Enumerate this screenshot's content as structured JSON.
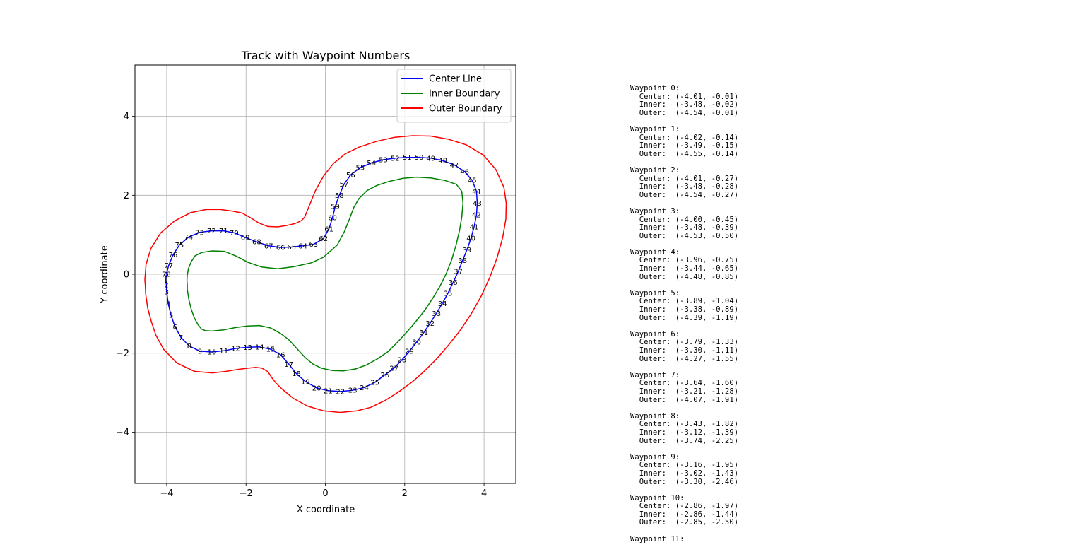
{
  "chart_data": {
    "type": "line",
    "title": "Track with Waypoint Numbers",
    "xlabel": "X coordinate",
    "ylabel": "Y coordinate",
    "xlim": [
      -4.8,
      4.8
    ],
    "ylim": [
      -5.3,
      5.3
    ],
    "xticks": [
      -4,
      -2,
      0,
      2,
      4
    ],
    "yticks": [
      -4,
      -2,
      0,
      2,
      4
    ],
    "grid": true,
    "legend_position": "top-right",
    "series": [
      {
        "name": "Center Line",
        "color": "#0000ff",
        "points": [
          [
            -4.01,
            -0.01
          ],
          [
            -4.02,
            -0.14
          ],
          [
            -4.01,
            -0.27
          ],
          [
            -4.0,
            -0.45
          ],
          [
            -3.96,
            -0.75
          ],
          [
            -3.89,
            -1.04
          ],
          [
            -3.79,
            -1.33
          ],
          [
            -3.64,
            -1.6
          ],
          [
            -3.43,
            -1.82
          ],
          [
            -3.16,
            -1.95
          ],
          [
            -2.86,
            -1.97
          ],
          [
            -2.56,
            -1.94
          ],
          [
            -2.26,
            -1.88
          ],
          [
            -1.96,
            -1.85
          ],
          [
            -1.66,
            -1.84
          ],
          [
            -1.38,
            -1.9
          ],
          [
            -1.13,
            -2.04
          ],
          [
            -0.92,
            -2.28
          ],
          [
            -0.73,
            -2.52
          ],
          [
            -0.5,
            -2.72
          ],
          [
            -0.22,
            -2.88
          ],
          [
            0.07,
            -2.95
          ],
          [
            0.38,
            -2.97
          ],
          [
            0.69,
            -2.94
          ],
          [
            0.98,
            -2.87
          ],
          [
            1.25,
            -2.74
          ],
          [
            1.5,
            -2.55
          ],
          [
            1.73,
            -2.38
          ],
          [
            1.93,
            -2.17
          ],
          [
            2.12,
            -1.95
          ],
          [
            2.3,
            -1.72
          ],
          [
            2.48,
            -1.48
          ],
          [
            2.64,
            -1.24
          ],
          [
            2.8,
            -0.99
          ],
          [
            2.95,
            -0.74
          ],
          [
            3.09,
            -0.48
          ],
          [
            3.22,
            -0.21
          ],
          [
            3.35,
            0.07
          ],
          [
            3.46,
            0.35
          ],
          [
            3.57,
            0.62
          ],
          [
            3.67,
            0.91
          ],
          [
            3.75,
            1.2
          ],
          [
            3.81,
            1.5
          ],
          [
            3.83,
            1.8
          ],
          [
            3.81,
            2.1
          ],
          [
            3.7,
            2.38
          ],
          [
            3.51,
            2.6
          ],
          [
            3.25,
            2.77
          ],
          [
            2.96,
            2.88
          ],
          [
            2.66,
            2.94
          ],
          [
            2.36,
            2.96
          ],
          [
            2.06,
            2.96
          ],
          [
            1.76,
            2.94
          ],
          [
            1.46,
            2.9
          ],
          [
            1.16,
            2.82
          ],
          [
            0.88,
            2.7
          ],
          [
            0.64,
            2.52
          ],
          [
            0.47,
            2.28
          ],
          [
            0.35,
            2.0
          ],
          [
            0.25,
            1.72
          ],
          [
            0.18,
            1.43
          ],
          [
            0.09,
            1.15
          ],
          [
            -0.05,
            0.9
          ],
          [
            -0.3,
            0.76
          ],
          [
            -0.57,
            0.72
          ],
          [
            -0.85,
            0.69
          ],
          [
            -1.13,
            0.68
          ],
          [
            -1.43,
            0.72
          ],
          [
            -1.73,
            0.82
          ],
          [
            -2.02,
            0.93
          ],
          [
            -2.3,
            1.05
          ],
          [
            -2.57,
            1.1
          ],
          [
            -2.87,
            1.1
          ],
          [
            -3.17,
            1.06
          ],
          [
            -3.45,
            0.94
          ],
          [
            -3.68,
            0.74
          ],
          [
            -3.84,
            0.49
          ],
          [
            -3.95,
            0.22
          ],
          [
            -4.01,
            0.0
          ]
        ]
      },
      {
        "name": "Inner Boundary",
        "color": "#008000",
        "points": [
          [
            -3.48,
            -0.02
          ],
          [
            -3.49,
            -0.15
          ],
          [
            -3.48,
            -0.28
          ],
          [
            -3.48,
            -0.39
          ],
          [
            -3.44,
            -0.65
          ],
          [
            -3.38,
            -0.89
          ],
          [
            -3.3,
            -1.11
          ],
          [
            -3.21,
            -1.28
          ],
          [
            -3.12,
            -1.39
          ],
          [
            -3.02,
            -1.43
          ],
          [
            -2.86,
            -1.44
          ],
          [
            -2.56,
            -1.41
          ],
          [
            -2.26,
            -1.35
          ],
          [
            -1.96,
            -1.31
          ],
          [
            -1.66,
            -1.3
          ],
          [
            -1.38,
            -1.36
          ],
          [
            -1.13,
            -1.5
          ],
          [
            -0.92,
            -1.66
          ],
          [
            -0.73,
            -1.87
          ],
          [
            -0.52,
            -2.1
          ],
          [
            -0.32,
            -2.27
          ],
          [
            -0.1,
            -2.38
          ],
          [
            0.18,
            -2.44
          ],
          [
            0.45,
            -2.45
          ],
          [
            0.76,
            -2.4
          ],
          [
            1.03,
            -2.3
          ],
          [
            1.32,
            -2.14
          ],
          [
            1.58,
            -1.96
          ],
          [
            1.82,
            -1.72
          ],
          [
            2.05,
            -1.47
          ],
          [
            2.28,
            -1.2
          ],
          [
            2.5,
            -0.92
          ],
          [
            2.7,
            -0.62
          ],
          [
            2.88,
            -0.32
          ],
          [
            3.04,
            0.0
          ],
          [
            3.18,
            0.35
          ],
          [
            3.29,
            0.72
          ],
          [
            3.38,
            1.1
          ],
          [
            3.44,
            1.45
          ],
          [
            3.47,
            1.8
          ],
          [
            3.44,
            2.1
          ],
          [
            3.3,
            2.28
          ],
          [
            3.0,
            2.38
          ],
          [
            2.65,
            2.44
          ],
          [
            2.3,
            2.46
          ],
          [
            1.95,
            2.43
          ],
          [
            1.6,
            2.35
          ],
          [
            1.3,
            2.25
          ],
          [
            1.05,
            2.12
          ],
          [
            0.85,
            1.92
          ],
          [
            0.72,
            1.7
          ],
          [
            0.6,
            1.38
          ],
          [
            0.48,
            1.08
          ],
          [
            0.3,
            0.74
          ],
          [
            -0.05,
            0.43
          ],
          [
            -0.35,
            0.29
          ],
          [
            -0.8,
            0.19
          ],
          [
            -1.2,
            0.14
          ],
          [
            -1.6,
            0.18
          ],
          [
            -1.95,
            0.3
          ],
          [
            -2.25,
            0.46
          ],
          [
            -2.55,
            0.58
          ],
          [
            -2.85,
            0.59
          ],
          [
            -3.12,
            0.55
          ],
          [
            -3.28,
            0.47
          ],
          [
            -3.38,
            0.32
          ],
          [
            -3.45,
            0.15
          ],
          [
            -3.48,
            -0.02
          ]
        ]
      },
      {
        "name": "Outer Boundary",
        "color": "#ff0000",
        "points": [
          [
            -4.54,
            -0.01
          ],
          [
            -4.55,
            -0.14
          ],
          [
            -4.54,
            -0.27
          ],
          [
            -4.53,
            -0.5
          ],
          [
            -4.48,
            -0.85
          ],
          [
            -4.39,
            -1.19
          ],
          [
            -4.27,
            -1.55
          ],
          [
            -4.07,
            -1.91
          ],
          [
            -3.74,
            -2.25
          ],
          [
            -3.3,
            -2.46
          ],
          [
            -2.85,
            -2.5
          ],
          [
            -2.5,
            -2.46
          ],
          [
            -2.2,
            -2.41
          ],
          [
            -1.95,
            -2.38
          ],
          [
            -1.75,
            -2.36
          ],
          [
            -1.6,
            -2.38
          ],
          [
            -1.45,
            -2.47
          ],
          [
            -1.35,
            -2.62
          ],
          [
            -1.25,
            -2.75
          ],
          [
            -1.1,
            -2.9
          ],
          [
            -0.8,
            -3.15
          ],
          [
            -0.45,
            -3.34
          ],
          [
            -0.05,
            -3.46
          ],
          [
            0.38,
            -3.5
          ],
          [
            0.8,
            -3.46
          ],
          [
            1.15,
            -3.37
          ],
          [
            1.5,
            -3.2
          ],
          [
            1.85,
            -2.98
          ],
          [
            2.2,
            -2.72
          ],
          [
            2.5,
            -2.45
          ],
          [
            2.8,
            -2.15
          ],
          [
            3.1,
            -1.8
          ],
          [
            3.4,
            -1.42
          ],
          [
            3.68,
            -1.0
          ],
          [
            3.93,
            -0.55
          ],
          [
            4.15,
            -0.07
          ],
          [
            4.33,
            0.42
          ],
          [
            4.47,
            0.93
          ],
          [
            4.55,
            1.4
          ],
          [
            4.56,
            1.8
          ],
          [
            4.5,
            2.2
          ],
          [
            4.3,
            2.65
          ],
          [
            3.98,
            3.02
          ],
          [
            3.55,
            3.28
          ],
          [
            3.1,
            3.42
          ],
          [
            2.65,
            3.5
          ],
          [
            2.2,
            3.51
          ],
          [
            1.75,
            3.47
          ],
          [
            1.3,
            3.37
          ],
          [
            0.85,
            3.22
          ],
          [
            0.5,
            3.05
          ],
          [
            0.2,
            2.8
          ],
          [
            -0.05,
            2.48
          ],
          [
            -0.25,
            2.12
          ],
          [
            -0.42,
            1.7
          ],
          [
            -0.52,
            1.45
          ],
          [
            -0.6,
            1.36
          ],
          [
            -0.75,
            1.29
          ],
          [
            -0.95,
            1.24
          ],
          [
            -1.2,
            1.2
          ],
          [
            -1.45,
            1.21
          ],
          [
            -1.68,
            1.3
          ],
          [
            -1.9,
            1.44
          ],
          [
            -2.1,
            1.55
          ],
          [
            -2.35,
            1.6
          ],
          [
            -2.65,
            1.64
          ],
          [
            -3.0,
            1.64
          ],
          [
            -3.4,
            1.56
          ],
          [
            -3.8,
            1.35
          ],
          [
            -4.15,
            1.05
          ],
          [
            -4.4,
            0.65
          ],
          [
            -4.52,
            0.25
          ],
          [
            -4.54,
            -0.01
          ]
        ]
      }
    ],
    "waypoint_labels": [
      "0",
      "1",
      "2",
      "3",
      "4",
      "5",
      "6",
      "7",
      "8",
      "9",
      "10",
      "11",
      "12",
      "13",
      "14",
      "15",
      "16",
      "17",
      "18",
      "19",
      "20",
      "21",
      "22",
      "23",
      "24",
      "25",
      "26",
      "27",
      "28",
      "29",
      "30",
      "31",
      "32",
      "33",
      "34",
      "35",
      "36",
      "37",
      "38",
      "39",
      "40",
      "41",
      "42",
      "43",
      "44",
      "45",
      "46",
      "47",
      "48",
      "49",
      "50",
      "51",
      "52",
      "53",
      "54",
      "55",
      "56",
      "57",
      "58",
      "59",
      "60",
      "61",
      "62",
      "63",
      "64",
      "65",
      "66",
      "67",
      "68",
      "69",
      "70",
      "71",
      "72",
      "73",
      "74",
      "75",
      "76",
      "77",
      "78"
    ]
  },
  "waypoint_list": [
    {
      "title": "Waypoint 0:",
      "center": "  Center: (-4.01, -0.01)",
      "inner": "  Inner:  (-3.48, -0.02)",
      "outer": "  Outer:  (-4.54, -0.01)"
    },
    {
      "title": "Waypoint 1:",
      "center": "  Center: (-4.02, -0.14)",
      "inner": "  Inner:  (-3.49, -0.15)",
      "outer": "  Outer:  (-4.55, -0.14)"
    },
    {
      "title": "Waypoint 2:",
      "center": "  Center: (-4.01, -0.27)",
      "inner": "  Inner:  (-3.48, -0.28)",
      "outer": "  Outer:  (-4.54, -0.27)"
    },
    {
      "title": "Waypoint 3:",
      "center": "  Center: (-4.00, -0.45)",
      "inner": "  Inner:  (-3.48, -0.39)",
      "outer": "  Outer:  (-4.53, -0.50)"
    },
    {
      "title": "Waypoint 4:",
      "center": "  Center: (-3.96, -0.75)",
      "inner": "  Inner:  (-3.44, -0.65)",
      "outer": "  Outer:  (-4.48, -0.85)"
    },
    {
      "title": "Waypoint 5:",
      "center": "  Center: (-3.89, -1.04)",
      "inner": "  Inner:  (-3.38, -0.89)",
      "outer": "  Outer:  (-4.39, -1.19)"
    },
    {
      "title": "Waypoint 6:",
      "center": "  Center: (-3.79, -1.33)",
      "inner": "  Inner:  (-3.30, -1.11)",
      "outer": "  Outer:  (-4.27, -1.55)"
    },
    {
      "title": "Waypoint 7:",
      "center": "  Center: (-3.64, -1.60)",
      "inner": "  Inner:  (-3.21, -1.28)",
      "outer": "  Outer:  (-4.07, -1.91)"
    },
    {
      "title": "Waypoint 8:",
      "center": "  Center: (-3.43, -1.82)",
      "inner": "  Inner:  (-3.12, -1.39)",
      "outer": "  Outer:  (-3.74, -2.25)"
    },
    {
      "title": "Waypoint 9:",
      "center": "  Center: (-3.16, -1.95)",
      "inner": "  Inner:  (-3.02, -1.43)",
      "outer": "  Outer:  (-3.30, -2.46)"
    },
    {
      "title": "Waypoint 10:",
      "center": "  Center: (-2.86, -1.97)",
      "inner": "  Inner:  (-2.86, -1.44)",
      "outer": "  Outer:  (-2.85, -2.50)"
    },
    {
      "title": "Waypoint 11:",
      "center": "",
      "inner": "",
      "outer": ""
    }
  ]
}
